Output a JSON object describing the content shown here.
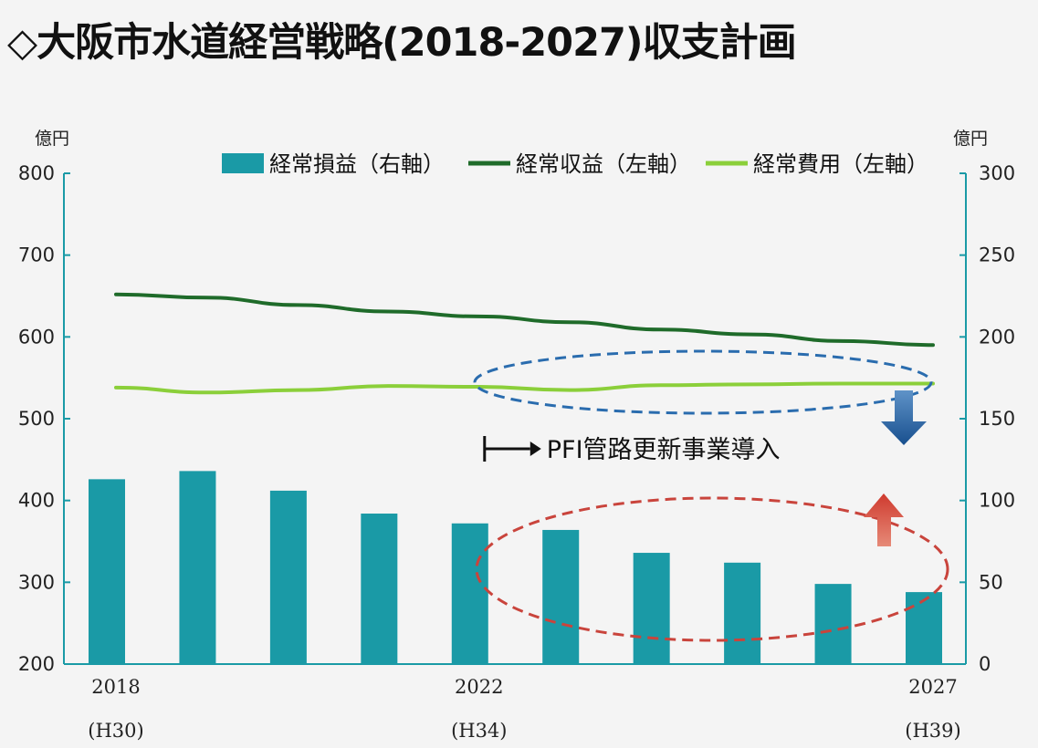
{
  "title": "◇大阪市水道経営戦略(2018-2027)収支計画",
  "chart_data": {
    "type": "bar",
    "x": [
      2018,
      2019,
      2020,
      2021,
      2022,
      2023,
      2024,
      2025,
      2026,
      2027
    ],
    "x_tick_labels": [
      {
        "x": 2018,
        "year": "2018",
        "era": "(H30)"
      },
      {
        "x": 2022,
        "year": "2022",
        "era": "(H34)"
      },
      {
        "x": 2027,
        "year": "2027",
        "era": "(H39)"
      }
    ],
    "y_left_unit": "億円",
    "y_right_unit": "億円",
    "ylim_left": [
      200,
      800
    ],
    "yticks_left": [
      200,
      300,
      400,
      500,
      600,
      700,
      800
    ],
    "ylim_right": [
      0,
      300
    ],
    "yticks_right": [
      0,
      50,
      100,
      150,
      200,
      250,
      300
    ],
    "series": [
      {
        "name": "経常損益（右軸）",
        "type": "bar",
        "axis": "right",
        "color": "#1a9aa6",
        "values": [
          113,
          118,
          106,
          92,
          86,
          82,
          68,
          62,
          49,
          44
        ]
      },
      {
        "name": "経常収益（左軸）",
        "type": "line",
        "axis": "left",
        "color": "#1f6b2a",
        "values": [
          652,
          648,
          639,
          631,
          625,
          618,
          609,
          603,
          595,
          590
        ]
      },
      {
        "name": "経常費用（左軸）",
        "type": "line",
        "axis": "left",
        "color": "#8bcf3a",
        "values": [
          538,
          532,
          535,
          540,
          539,
          535,
          541,
          542,
          543,
          543
        ]
      }
    ],
    "annotations": [
      {
        "text": "PFI管路更新事業導入",
        "from_x": 2022
      }
    ],
    "legend_position": "top-center",
    "grid": false
  }
}
